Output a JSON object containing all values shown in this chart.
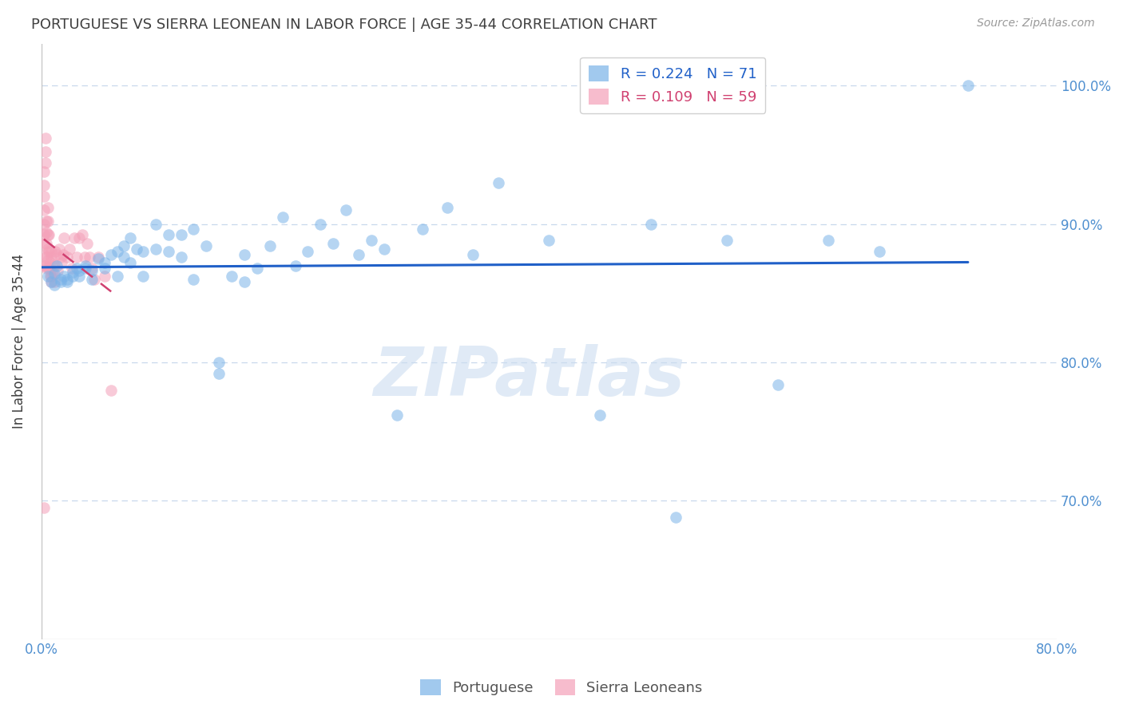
{
  "title": "PORTUGUESE VS SIERRA LEONEAN IN LABOR FORCE | AGE 35-44 CORRELATION CHART",
  "source": "Source: ZipAtlas.com",
  "ylabel": "In Labor Force | Age 35-44",
  "xlim": [
    0.0,
    0.8
  ],
  "ylim": [
    0.6,
    1.03
  ],
  "yticks": [
    0.7,
    0.8,
    0.9,
    1.0
  ],
  "ytick_labels": [
    "70.0%",
    "80.0%",
    "90.0%",
    "100.0%"
  ],
  "xticks": [
    0.0,
    0.1,
    0.2,
    0.3,
    0.4,
    0.5,
    0.6,
    0.7,
    0.8
  ],
  "xtick_labels": [
    "0.0%",
    "",
    "",
    "",
    "",
    "",
    "",
    "",
    "80.0%"
  ],
  "blue_R": 0.224,
  "blue_N": 71,
  "pink_R": 0.109,
  "pink_N": 59,
  "blue_color": "#7ab3e8",
  "pink_color": "#f4a0b8",
  "blue_line_color": "#2060c8",
  "pink_line_color": "#d04070",
  "axis_color": "#5090d0",
  "grid_color": "#c8d8ec",
  "title_color": "#404040",
  "watermark": "ZIPatlas",
  "blue_scatter_x": [
    0.005,
    0.008,
    0.01,
    0.01,
    0.012,
    0.015,
    0.015,
    0.018,
    0.02,
    0.02,
    0.025,
    0.025,
    0.028,
    0.03,
    0.03,
    0.035,
    0.035,
    0.04,
    0.04,
    0.045,
    0.05,
    0.05,
    0.055,
    0.06,
    0.06,
    0.065,
    0.065,
    0.07,
    0.07,
    0.075,
    0.08,
    0.08,
    0.09,
    0.09,
    0.1,
    0.1,
    0.11,
    0.11,
    0.12,
    0.12,
    0.13,
    0.14,
    0.14,
    0.15,
    0.16,
    0.16,
    0.17,
    0.18,
    0.19,
    0.2,
    0.21,
    0.22,
    0.23,
    0.24,
    0.25,
    0.26,
    0.27,
    0.28,
    0.3,
    0.32,
    0.34,
    0.36,
    0.4,
    0.44,
    0.48,
    0.5,
    0.54,
    0.58,
    0.62,
    0.66,
    0.73
  ],
  "blue_scatter_y": [
    0.862,
    0.858,
    0.864,
    0.856,
    0.87,
    0.86,
    0.858,
    0.862,
    0.86,
    0.858,
    0.865,
    0.862,
    0.868,
    0.866,
    0.862,
    0.87,
    0.868,
    0.866,
    0.86,
    0.875,
    0.872,
    0.868,
    0.878,
    0.88,
    0.862,
    0.876,
    0.884,
    0.872,
    0.89,
    0.882,
    0.88,
    0.862,
    0.9,
    0.882,
    0.892,
    0.88,
    0.892,
    0.876,
    0.896,
    0.86,
    0.884,
    0.792,
    0.8,
    0.862,
    0.878,
    0.858,
    0.868,
    0.884,
    0.905,
    0.87,
    0.88,
    0.9,
    0.886,
    0.91,
    0.878,
    0.888,
    0.882,
    0.762,
    0.896,
    0.912,
    0.878,
    0.93,
    0.888,
    0.762,
    0.9,
    0.688,
    0.888,
    0.784,
    0.888,
    0.88,
    1.0
  ],
  "pink_scatter_x": [
    0.002,
    0.002,
    0.002,
    0.002,
    0.002,
    0.002,
    0.002,
    0.002,
    0.002,
    0.003,
    0.003,
    0.003,
    0.003,
    0.004,
    0.004,
    0.004,
    0.004,
    0.004,
    0.005,
    0.005,
    0.005,
    0.005,
    0.005,
    0.006,
    0.006,
    0.006,
    0.007,
    0.007,
    0.008,
    0.008,
    0.008,
    0.008,
    0.009,
    0.01,
    0.01,
    0.011,
    0.012,
    0.013,
    0.014,
    0.015,
    0.016,
    0.017,
    0.018,
    0.02,
    0.022,
    0.024,
    0.026,
    0.028,
    0.03,
    0.032,
    0.034,
    0.036,
    0.038,
    0.04,
    0.042,
    0.045,
    0.05,
    0.055,
    0.002
  ],
  "pink_scatter_y": [
    0.87,
    0.878,
    0.886,
    0.892,
    0.9,
    0.91,
    0.92,
    0.928,
    0.938,
    0.944,
    0.952,
    0.962,
    0.87,
    0.876,
    0.886,
    0.894,
    0.902,
    0.868,
    0.874,
    0.882,
    0.892,
    0.902,
    0.912,
    0.88,
    0.892,
    0.868,
    0.872,
    0.862,
    0.88,
    0.876,
    0.862,
    0.858,
    0.864,
    0.87,
    0.858,
    0.88,
    0.878,
    0.866,
    0.882,
    0.876,
    0.872,
    0.878,
    0.89,
    0.876,
    0.882,
    0.868,
    0.89,
    0.876,
    0.89,
    0.892,
    0.876,
    0.886,
    0.876,
    0.868,
    0.86,
    0.876,
    0.862,
    0.78,
    0.695
  ]
}
